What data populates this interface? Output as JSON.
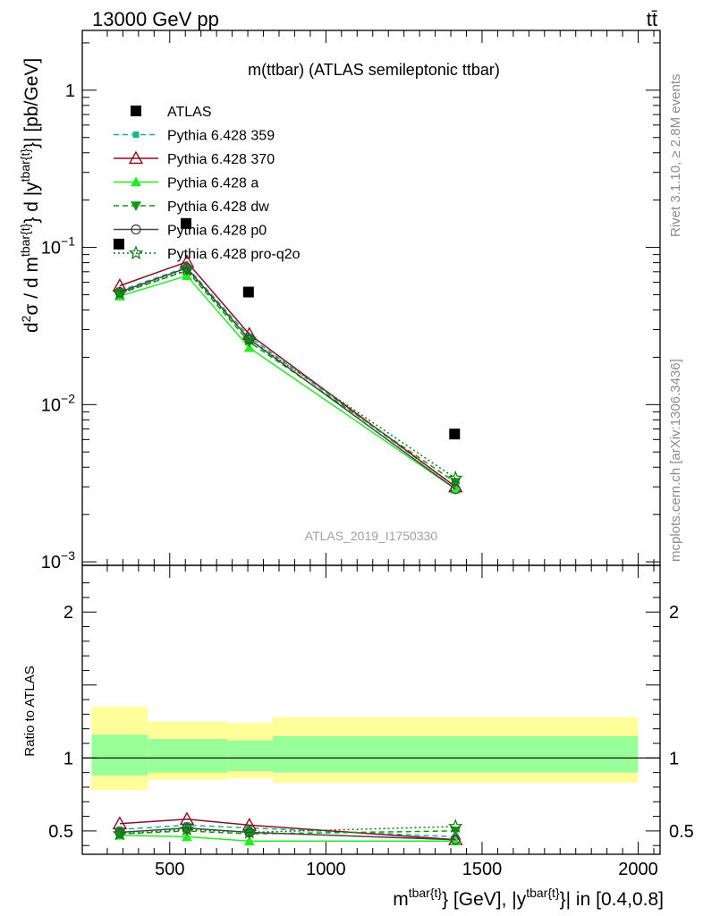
{
  "header": {
    "energy_label": "13000 GeV pp",
    "process_label": "tt̄"
  },
  "side_labels": {
    "rivet": "Rivet 3.1.10, ≥ 2.8M events",
    "mcplots": "mcplots.cern.ch [arXiv:1306.3436]"
  },
  "colors": {
    "data": "#000000",
    "p359": "#19b38c",
    "p370": "#8c1024",
    "a": "#22ee22",
    "dw": "#119911",
    "p0": "#444444",
    "proq2o": "#117711",
    "band_inner": "#99ff99",
    "band_outer": "#ffff99"
  },
  "chart_data": [
    {
      "type": "line",
      "panel": "main",
      "title": "m(ttbar) (ATLAS semileptonic ttbar)",
      "watermark": "ATLAS_2019_I1750330",
      "ylabel": "d²σ / d m^{tbar{t}} d |y^{tbar{t}}| [pb/GeV]",
      "yscale": "log",
      "xlim": [
        220,
        2070
      ],
      "ylim": [
        0.00095,
        2.4
      ],
      "yticks": [
        {
          "value": 0.001,
          "base": "10",
          "exp": "−3"
        },
        {
          "value": 0.01,
          "base": "10",
          "exp": "−2"
        },
        {
          "value": 0.1,
          "base": "10",
          "exp": "−1"
        },
        {
          "value": 1,
          "base": "1",
          "exp": ""
        }
      ],
      "x": [
        340,
        555,
        755,
        1415
      ],
      "legend_position": "top-left",
      "series": [
        {
          "name": "ATLAS",
          "key": "data",
          "marker": "square",
          "line": "none",
          "values": [
            0.105,
            0.142,
            0.052,
            0.0065
          ]
        },
        {
          "name": "Pythia 6.428 359",
          "key": "p359",
          "marker": "small-square",
          "line": "dashed",
          "values": [
            0.053,
            0.075,
            0.027,
            0.003
          ]
        },
        {
          "name": "Pythia 6.428 370",
          "key": "p370",
          "marker": "open-triangle",
          "line": "solid",
          "values": [
            0.057,
            0.081,
            0.028,
            0.003
          ]
        },
        {
          "name": "Pythia 6.428 a",
          "key": "a",
          "marker": "triangle",
          "line": "solid",
          "values": [
            0.049,
            0.066,
            0.023,
            0.0029
          ]
        },
        {
          "name": "Pythia 6.428 dw",
          "key": "dw",
          "marker": "down-triangle",
          "line": "dashed",
          "values": [
            0.051,
            0.071,
            0.025,
            0.0032
          ]
        },
        {
          "name": "Pythia 6.428 p0",
          "key": "p0",
          "marker": "open-circle",
          "line": "solid",
          "values": [
            0.052,
            0.074,
            0.026,
            0.0029
          ]
        },
        {
          "name": "Pythia 6.428 pro-q2o",
          "key": "proq2o",
          "marker": "star",
          "line": "dotted",
          "values": [
            0.051,
            0.072,
            0.026,
            0.0034
          ]
        }
      ]
    },
    {
      "type": "line",
      "panel": "ratio",
      "ylabel": "Ratio to ATLAS",
      "xlabel": "m^{tbar{t}} [GeV], |y^{tbar{t}}| in [0.4,0.8]",
      "xlim": [
        220,
        2070
      ],
      "ylim": [
        0.34,
        2.32
      ],
      "xticks": [
        500,
        1000,
        1500,
        2000
      ],
      "yticks": [
        0.5,
        1,
        2
      ],
      "reference_line": 1,
      "band_bins": [
        {
          "x0": 250,
          "x1": 430,
          "inner": [
            0.88,
            1.16
          ],
          "outer": [
            0.78,
            1.35
          ]
        },
        {
          "x0": 430,
          "x1": 685,
          "inner": [
            0.9,
            1.13
          ],
          "outer": [
            0.85,
            1.25
          ]
        },
        {
          "x0": 685,
          "x1": 830,
          "inner": [
            0.91,
            1.12
          ],
          "outer": [
            0.86,
            1.24
          ]
        },
        {
          "x0": 830,
          "x1": 2000,
          "inner": [
            0.9,
            1.15
          ],
          "outer": [
            0.83,
            1.28
          ]
        }
      ],
      "x": [
        340,
        555,
        755,
        1415
      ],
      "series": [
        {
          "name": "Pythia 6.428 359",
          "key": "p359",
          "values": [
            0.51,
            0.54,
            0.52,
            0.46
          ]
        },
        {
          "name": "Pythia 6.428 370",
          "key": "p370",
          "values": [
            0.55,
            0.58,
            0.54,
            0.44
          ]
        },
        {
          "name": "Pythia 6.428 a",
          "key": "a",
          "values": [
            0.47,
            0.46,
            0.43,
            0.43
          ]
        },
        {
          "name": "Pythia 6.428 dw",
          "key": "dw",
          "values": [
            0.48,
            0.5,
            0.48,
            0.5
          ]
        },
        {
          "name": "Pythia 6.428 p0",
          "key": "p0",
          "values": [
            0.49,
            0.52,
            0.49,
            0.44
          ]
        },
        {
          "name": "Pythia 6.428 pro-q2o",
          "key": "proq2o",
          "values": [
            0.48,
            0.51,
            0.49,
            0.53
          ]
        }
      ]
    }
  ]
}
